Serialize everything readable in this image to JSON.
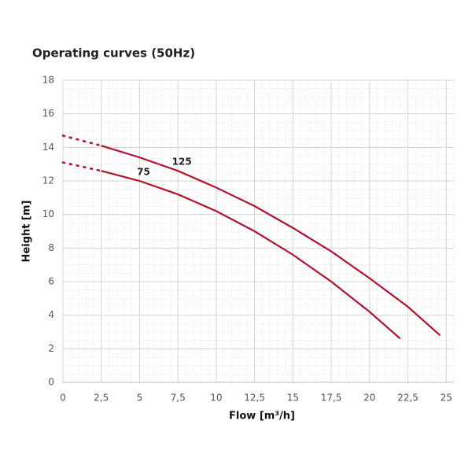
{
  "chart_data": {
    "type": "line",
    "title": "Operating curves (50Hz)",
    "x_label": "Flow [m³/h]",
    "y_label": "Height [m]",
    "xlim": [
      0,
      25.5
    ],
    "ylim": [
      0,
      18
    ],
    "xticks": [
      0,
      {
        "value": 2.5,
        "label": "2,5"
      },
      5,
      {
        "value": 7.5,
        "label": "7,5"
      },
      10,
      {
        "value": 12.5,
        "label": "12,5"
      },
      15,
      {
        "value": 17.5,
        "label": "17,5"
      },
      20,
      {
        "value": 22.5,
        "label": "22,5"
      },
      25
    ],
    "yticks": [
      0,
      2,
      4,
      6,
      8,
      10,
      12,
      14,
      16,
      18
    ],
    "grid": true,
    "minor_grid": true,
    "dotted_below_x": 2.5,
    "series": [
      {
        "name": "75",
        "color": "#b3132c",
        "x": [
          0,
          2.5,
          5,
          7.5,
          10,
          12.5,
          15,
          17.5,
          20,
          22
        ],
        "values": [
          13.1,
          12.6,
          12.0,
          11.2,
          10.2,
          9.0,
          7.6,
          6.0,
          4.2,
          2.6
        ]
      },
      {
        "name": "125",
        "color": "#b3132c",
        "x": [
          0,
          2.5,
          5,
          7.5,
          10,
          12.5,
          15,
          17.5,
          20,
          22.5,
          24.6
        ],
        "values": [
          14.7,
          14.1,
          13.4,
          12.6,
          11.6,
          10.5,
          9.2,
          7.8,
          6.2,
          4.5,
          2.8
        ]
      }
    ]
  }
}
